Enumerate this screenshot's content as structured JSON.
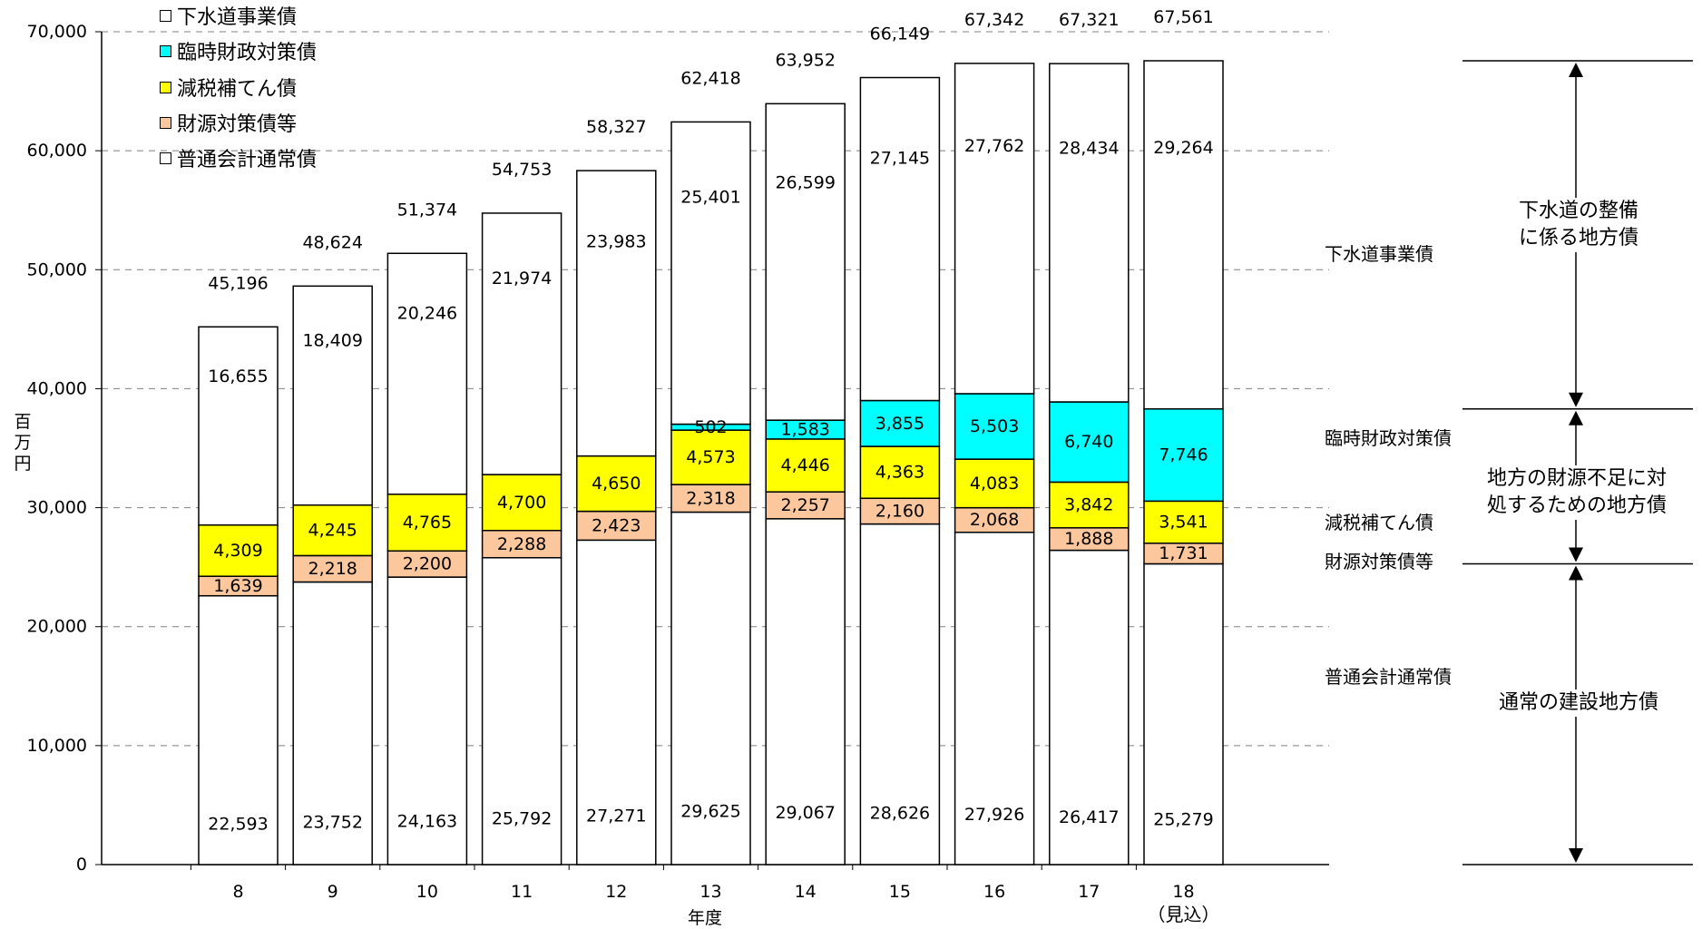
{
  "chart_data": {
    "type": "bar",
    "stacked": true,
    "categories": [
      "8",
      "9",
      "10",
      "11",
      "12",
      "13",
      "14",
      "15",
      "16",
      "17",
      "18"
    ],
    "category_notes": {
      "18": "（見込）"
    },
    "ylabel": "百万円",
    "xlabel": "年度",
    "ylim": [
      0,
      70000
    ],
    "yticks": [
      "0",
      "10,000",
      "20,000",
      "30,000",
      "40,000",
      "50,000",
      "60,000",
      "70,000"
    ],
    "grid": "dashed horizontal",
    "legend_position": "top-left",
    "series": [
      {
        "name": "普通会計通常債",
        "color": "#ffffff",
        "values": [
          22593,
          23752,
          24163,
          25792,
          27271,
          29625,
          29067,
          28626,
          27926,
          26417,
          25279
        ],
        "labels": [
          "22,593",
          "23,752",
          "24,163",
          "25,792",
          "27,271",
          "29,625",
          "29,067",
          "28,626",
          "27,926",
          "26,417",
          "25,279"
        ]
      },
      {
        "name": "財源対策債等",
        "color": "#fcc79c",
        "values": [
          1639,
          2218,
          2200,
          2288,
          2423,
          2318,
          2257,
          2160,
          2068,
          1888,
          1731
        ],
        "labels": [
          "1,639",
          "2,218",
          "2,200",
          "2,288",
          "2,423",
          "2,318",
          "2,257",
          "2,160",
          "2,068",
          "1,888",
          "1,731"
        ]
      },
      {
        "name": "減税補てん債",
        "color": "#ffff00",
        "values": [
          4309,
          4245,
          4765,
          4700,
          4650,
          4573,
          4446,
          4363,
          4083,
          3842,
          3541
        ],
        "labels": [
          "4,309",
          "4,245",
          "4,765",
          "4,700",
          "4,650",
          "4,573",
          "4,446",
          "4,363",
          "4,083",
          "3,842",
          "3,541"
        ]
      },
      {
        "name": "臨時財政対策債",
        "color": "#00ffff",
        "values": [
          0,
          0,
          0,
          0,
          0,
          502,
          1583,
          3855,
          5503,
          6740,
          7746
        ],
        "labels": [
          "",
          "",
          "",
          "",
          "",
          "502",
          "1,583",
          "3,855",
          "5,503",
          "6,740",
          "7,746"
        ]
      },
      {
        "name": "下水道事業債",
        "color": "#ffffff",
        "values": [
          16655,
          18409,
          20246,
          21974,
          23983,
          25401,
          26599,
          27145,
          27762,
          28434,
          29264
        ],
        "labels": [
          "16,655",
          "18,409",
          "20,246",
          "21,974",
          "23,983",
          "25,401",
          "26,599",
          "27,145",
          "27,762",
          "28,434",
          "29,264"
        ]
      }
    ],
    "totals": [
      45196,
      48624,
      51374,
      54753,
      58327,
      62418,
      63952,
      66149,
      67342,
      67321,
      67561
    ],
    "total_labels": [
      "45,196",
      "48,624",
      "51,374",
      "54,753",
      "58,327",
      "62,418",
      "63,952",
      "66,149",
      "67,342",
      "67,321",
      "67,561"
    ]
  },
  "legend": [
    {
      "label": "下水道事業債",
      "color": "#ffffff"
    },
    {
      "label": "臨時財政対策債",
      "color": "#00ffff"
    },
    {
      "label": "減税補てん債",
      "color": "#ffff00"
    },
    {
      "label": "財源対策債等",
      "color": "#fcc79c"
    },
    {
      "label": "普通会計通常債",
      "color": "#ffffff"
    }
  ],
  "axis": {
    "ylabel_chars": [
      "百",
      "万",
      "円"
    ],
    "xlabel": "年度",
    "x_note": "（見込）"
  },
  "side_labels": {
    "sewer": "下水道事業債",
    "temporary": "臨時財政対策債",
    "tax_cut": "減税補てん債",
    "fiscal": "財源対策債等",
    "normal": "普通会計通常債"
  },
  "braces": {
    "sewer_line1": "下水道の整備",
    "sewer_line2": "に係る地方債",
    "local_line1": "地方の財源不足に対",
    "local_line2": "処するための地方債",
    "normal_line1": "通常の建設地方債"
  }
}
